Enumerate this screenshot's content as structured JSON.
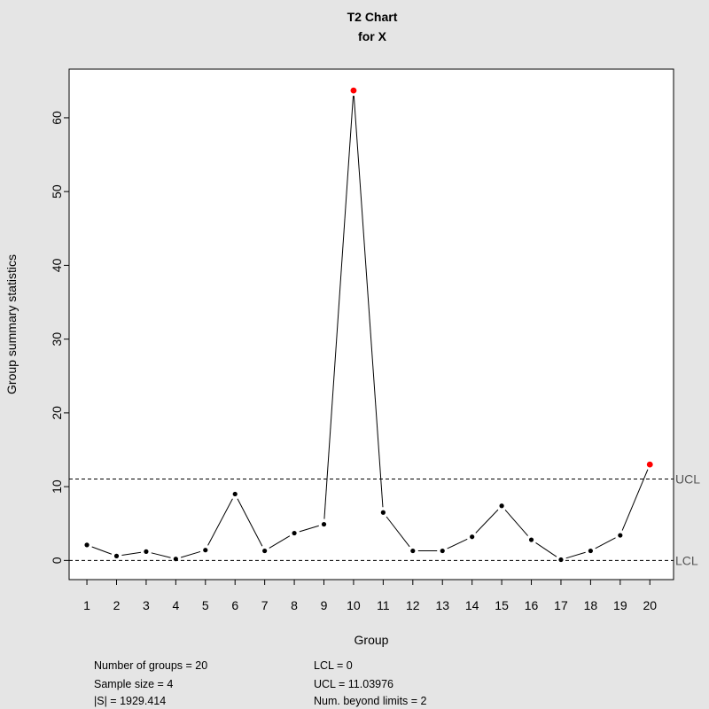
{
  "chart_data": {
    "type": "line",
    "title": "T2 Chart",
    "subtitle": "for X",
    "xlabel": "Group",
    "ylabel": "Group summary statistics",
    "x": [
      1,
      2,
      3,
      4,
      5,
      6,
      7,
      8,
      9,
      10,
      11,
      12,
      13,
      14,
      15,
      16,
      17,
      18,
      19,
      20
    ],
    "xlim": [
      0.4,
      20.8
    ],
    "ylim": [
      -2.6,
      66.6
    ],
    "yticks": [
      0,
      10,
      20,
      30,
      40,
      50,
      60
    ],
    "grid": false,
    "series": [
      {
        "values": [
          2.1,
          0.6,
          1.2,
          0.2,
          1.4,
          9.0,
          1.3,
          3.7,
          4.9,
          63.7,
          6.5,
          1.3,
          1.3,
          3.2,
          7.4,
          2.8,
          0.1,
          1.3,
          3.4,
          13.0
        ],
        "color": "#000000",
        "out_of_control_color": "#ff0000"
      }
    ],
    "control_limits": {
      "ucl": {
        "label": "UCL",
        "value": 11.03976
      },
      "lcl": {
        "label": "LCL",
        "value": 0
      }
    },
    "stats": {
      "left": [
        "Number of groups = 20",
        "Sample size = 4",
        "|S| = 1929.414"
      ],
      "right": [
        "LCL = 0",
        "UCL = 11.03976",
        "Num. beyond limits = 2"
      ]
    }
  }
}
